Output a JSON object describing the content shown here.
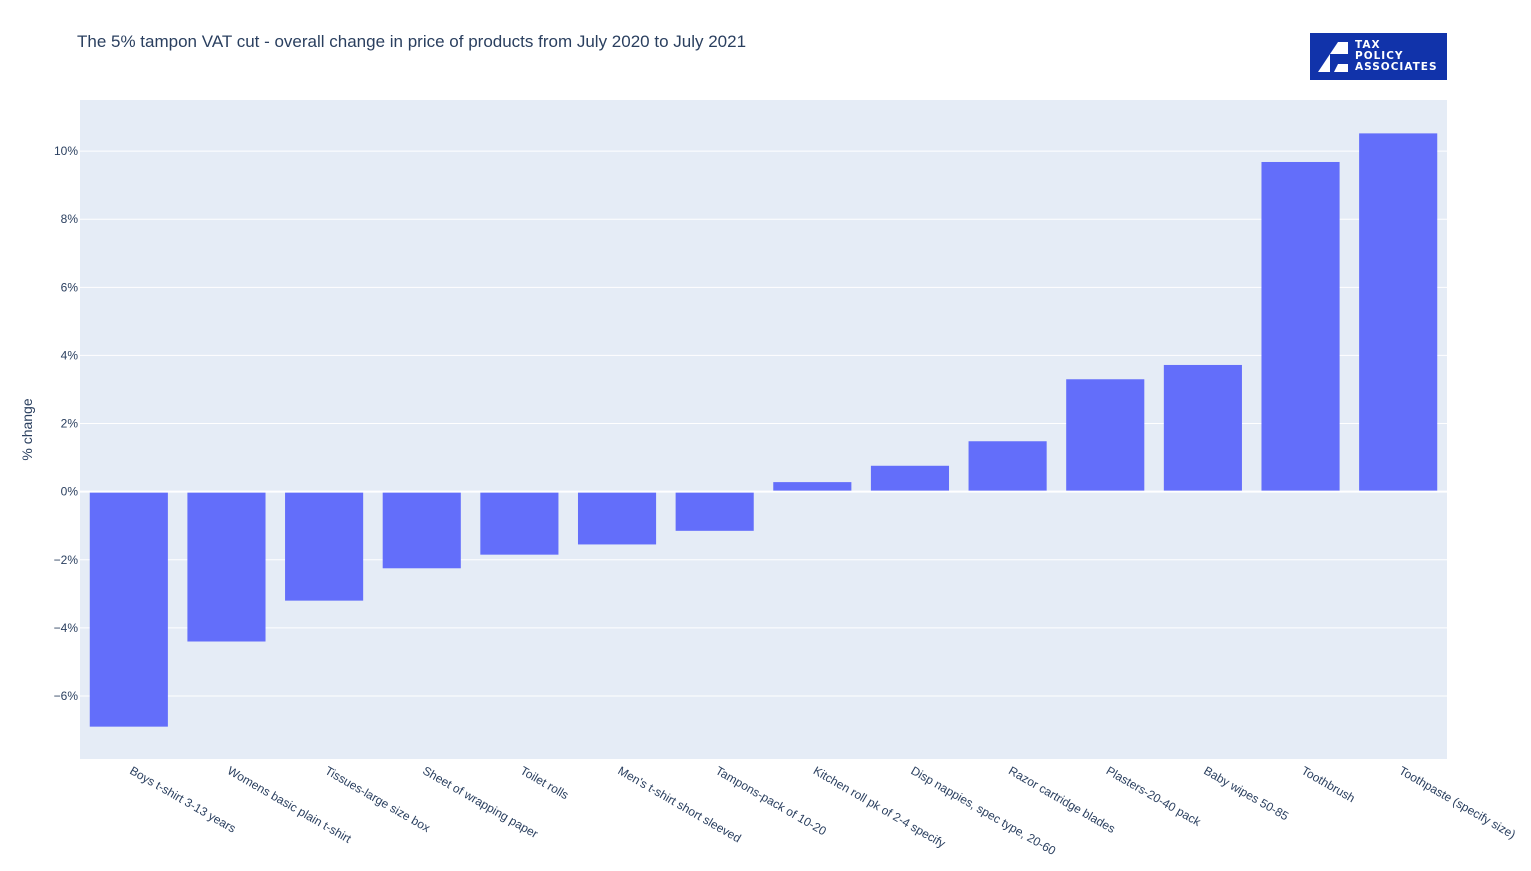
{
  "title": "The 5% tampon VAT cut - overall change in price of products from July 2020 to July 2021",
  "logo": {
    "lines": [
      "TAX",
      "POLICY",
      "ASSOCIATES"
    ],
    "color": "#1133aa"
  },
  "chart_data": {
    "type": "bar",
    "title": "The 5% tampon VAT cut - overall change in price of products from July 2020 to July 2021",
    "ylabel": "% change",
    "xlabel": "",
    "categories": [
      "Boys t-shirt 3-13 years",
      "Womens basic plain t-shirt",
      "Tissues-large size box",
      "Sheet of wrapping paper",
      "Toilet rolls",
      "Men's t-shirt short sleeved",
      "Tampons-pack of 10-20",
      "Kitchen roll pk of 2-4 specify",
      "Disp nappies, spec type, 20-60",
      "Razor cartridge blades",
      "Plasters-20-40 pack",
      "Baby wipes 50-85",
      "Toothbrush",
      "Toothpaste (specify size)"
    ],
    "values": [
      -6.9,
      -4.4,
      -3.2,
      -2.25,
      -1.85,
      -1.55,
      -1.15,
      0.28,
      0.76,
      1.48,
      3.3,
      3.72,
      9.68,
      10.52
    ],
    "ylim": [
      -7.85,
      11.5
    ],
    "yticks": [
      10,
      8,
      6,
      4,
      2,
      0,
      -2,
      -4,
      -6
    ],
    "ytick_labels": [
      "10%",
      "8%",
      "6%",
      "4%",
      "2%",
      "0%",
      "−2%",
      "−4%",
      "−6%"
    ],
    "bar_color": "#636efa",
    "plot_bgcolor": "#e5ecf6",
    "grid": true,
    "legend": "none"
  }
}
